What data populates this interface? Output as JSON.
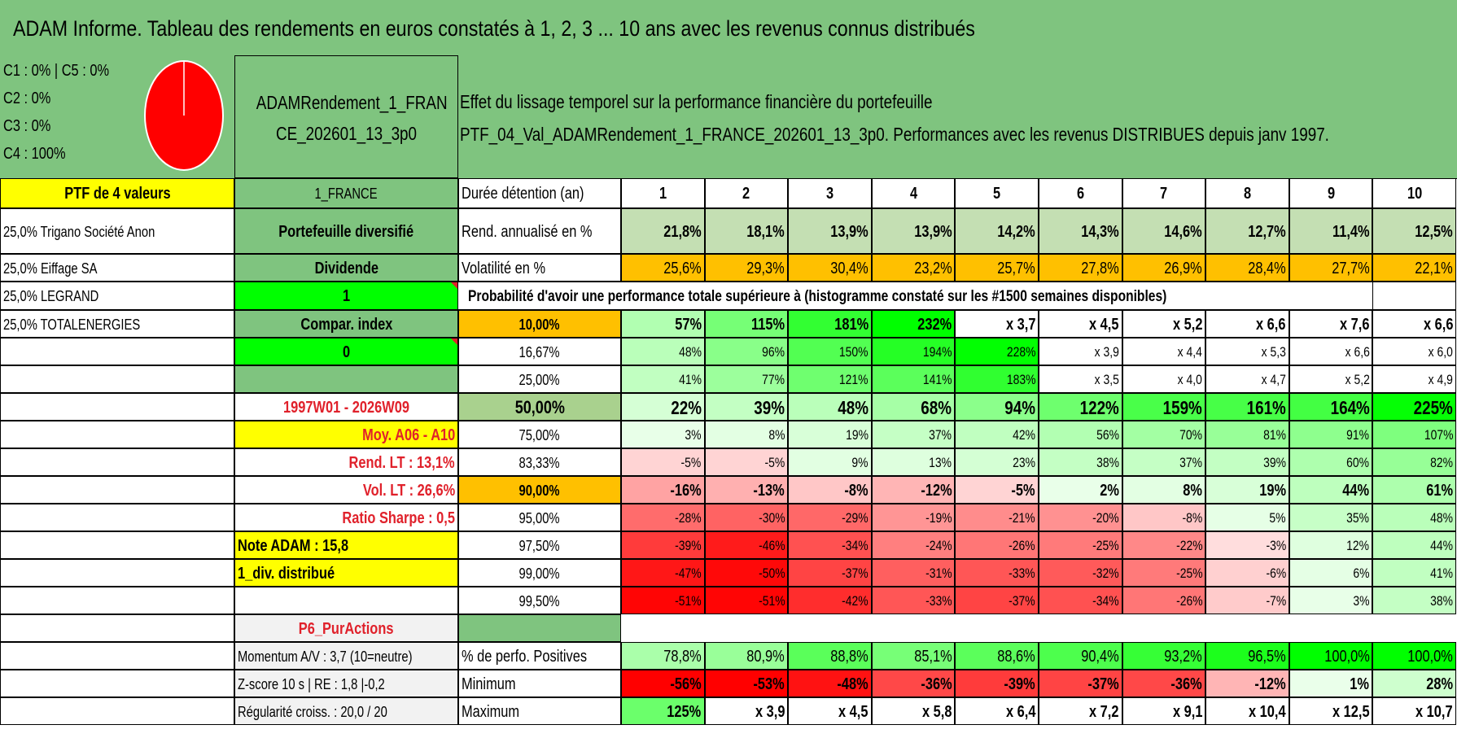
{
  "title": "ADAM Informe. Tableau des rendements en euros constatés à 1, 2, 3 ... 10 ans avec les revenus connus distribués",
  "pie": {
    "lines": [
      "C1 : 0% | C5 : 0%",
      "C2 : 0%",
      "C3 : 0%",
      "C4 : 100%"
    ],
    "color": "#ff0000"
  },
  "fund_name": "ADAMRendement_1_FRANCE_202601_13_3p0",
  "fund_name_lines": [
    "ADAMRendement_1_FRAN",
    "CE_202601_13_3p0"
  ],
  "desc": {
    "line1": "Effet du lissage temporel sur la performance financière du portefeuille",
    "line2": "PTF_04_Val_ADAMRendement_1_FRANCE_202601_13_3p0. Performances avec les revenus DISTRIBUES depuis janv 1997."
  },
  "left": {
    "ptf": "PTF de 4 valeurs",
    "holdings": [
      "25,0% Trigano Société Anon",
      "25,0% Eiffage SA",
      "25,0% LEGRAND",
      "25,0% TOTALENERGIES"
    ]
  },
  "mid": {
    "country": "1_FRANCE",
    "type": "Portefeuille diversifié",
    "income": "Dividende",
    "income_flag": "1",
    "compar": "Compar. index",
    "compar_flag": "0",
    "period": "1997W01 - 2026W09",
    "moy": "Moy. A06 - A10",
    "rend_lt": "Rend. LT : 13,1%",
    "vol_lt": "Vol. LT : 26,6%",
    "sharpe": "Ratio Sharpe : 0,5",
    "note": "Note ADAM : 15,8",
    "div": "1_div. distribué",
    "p6": "P6_PurActions",
    "momentum": "Momentum A/V : 3,7 (10=neutre)",
    "zscore": "Z-score 10 s | RE : 1,8 |-0,2",
    "regularite": "Régularité croiss. : 20,0 / 20"
  },
  "table": {
    "header_label": "Durée détention (an)",
    "years": [
      "1",
      "2",
      "3",
      "4",
      "5",
      "6",
      "7",
      "8",
      "9",
      "10"
    ],
    "rend_label": "Rend. annualisé en %",
    "rend": [
      "21,8%",
      "18,1%",
      "13,9%",
      "13,9%",
      "14,2%",
      "14,3%",
      "14,6%",
      "12,7%",
      "11,4%",
      "12,5%"
    ],
    "vol_label": "Volatilité en %",
    "vol": [
      "25,6%",
      "29,3%",
      "30,4%",
      "23,2%",
      "25,7%",
      "27,8%",
      "26,9%",
      "28,4%",
      "27,7%",
      "22,1%"
    ],
    "prob_label": "Probabilité d'avoir une performance totale supérieure à (histogramme constaté sur les #1500 semaines disponibles)",
    "prob_rows": [
      {
        "label": "10,00%",
        "values": [
          "57%",
          "115%",
          "181%",
          "232%",
          "x 3,7",
          "x 4,5",
          "x 5,2",
          "x 6,6",
          "x 7,6",
          "x 6,6"
        ]
      },
      {
        "label": "16,67%",
        "values": [
          "48%",
          "96%",
          "150%",
          "194%",
          "228%",
          "x 3,9",
          "x 4,4",
          "x 5,3",
          "x 6,6",
          "x 6,0"
        ]
      },
      {
        "label": "25,00%",
        "values": [
          "41%",
          "77%",
          "121%",
          "141%",
          "183%",
          "x 3,5",
          "x 4,0",
          "x 4,7",
          "x 5,2",
          "x 4,9"
        ]
      },
      {
        "label": "50,00%",
        "values": [
          "22%",
          "39%",
          "48%",
          "68%",
          "94%",
          "122%",
          "159%",
          "161%",
          "164%",
          "225%"
        ]
      },
      {
        "label": "75,00%",
        "values": [
          "3%",
          "8%",
          "19%",
          "37%",
          "42%",
          "56%",
          "70%",
          "81%",
          "91%",
          "107%"
        ]
      },
      {
        "label": "83,33%",
        "values": [
          "-5%",
          "-5%",
          "9%",
          "13%",
          "23%",
          "38%",
          "37%",
          "39%",
          "60%",
          "82%"
        ]
      },
      {
        "label": "90,00%",
        "values": [
          "-16%",
          "-13%",
          "-8%",
          "-12%",
          "-5%",
          "2%",
          "8%",
          "19%",
          "44%",
          "61%"
        ]
      },
      {
        "label": "95,00%",
        "values": [
          "-28%",
          "-30%",
          "-29%",
          "-19%",
          "-21%",
          "-20%",
          "-8%",
          "5%",
          "35%",
          "48%"
        ]
      },
      {
        "label": "97,50%",
        "values": [
          "-39%",
          "-46%",
          "-34%",
          "-24%",
          "-26%",
          "-25%",
          "-22%",
          "-3%",
          "12%",
          "44%"
        ]
      },
      {
        "label": "99,00%",
        "values": [
          "-47%",
          "-50%",
          "-37%",
          "-31%",
          "-33%",
          "-32%",
          "-25%",
          "-6%",
          "6%",
          "41%"
        ]
      },
      {
        "label": "99,50%",
        "values": [
          "-51%",
          "-51%",
          "-42%",
          "-33%",
          "-37%",
          "-34%",
          "-26%",
          "-7%",
          "3%",
          "38%"
        ]
      }
    ],
    "pos_label": "% de perfo. Positives",
    "pos": [
      "78,8%",
      "80,9%",
      "88,8%",
      "85,1%",
      "88,6%",
      "90,4%",
      "93,2%",
      "96,5%",
      "100,0%",
      "100,0%"
    ],
    "min_label": "Minimum",
    "min": [
      "-56%",
      "-53%",
      "-48%",
      "-36%",
      "-39%",
      "-37%",
      "-36%",
      "-12%",
      "1%",
      "28%"
    ],
    "max_label": "Maximum",
    "max": [
      "125%",
      "x 3,9",
      "x 4,5",
      "x 5,8",
      "x 6,4",
      "x 7,2",
      "x 9,1",
      "x 10,4",
      "x 12,5",
      "x 10,7"
    ]
  },
  "colors": {
    "header_green": "#7fc47f",
    "yellow": "#ffff00",
    "lime": "#00ff00",
    "orange": "#ffc000",
    "red_text": "#e0212b"
  }
}
